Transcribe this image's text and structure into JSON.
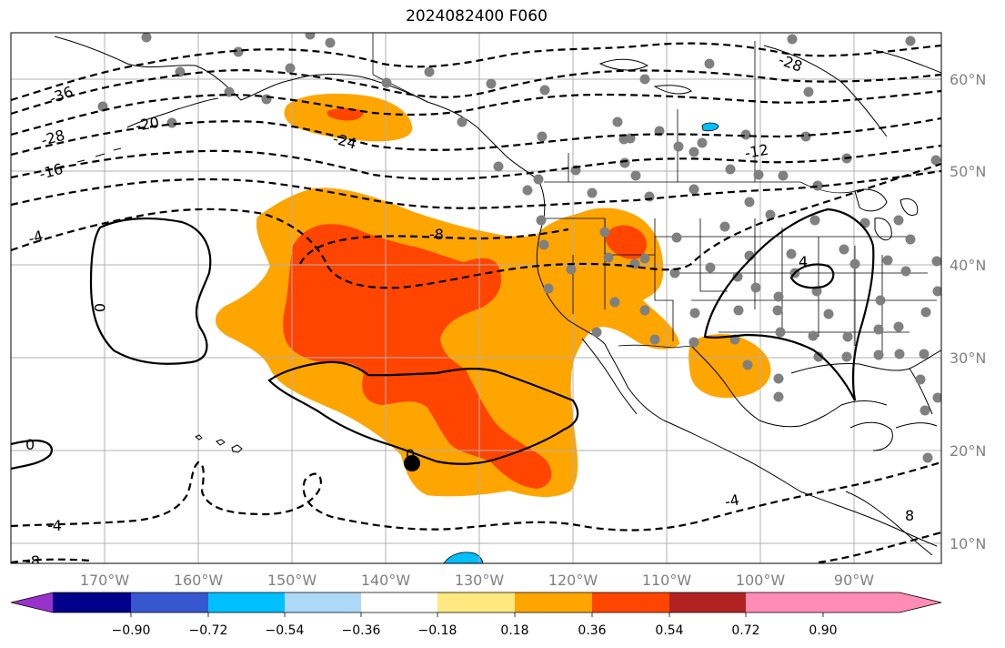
{
  "title": "2024082400 F060",
  "longitude_ticks": [
    "170°W",
    "160°W",
    "150°W",
    "140°W",
    "130°W",
    "120°W",
    "110°W",
    "100°W",
    "90°W"
  ],
  "latitude_ticks": [
    "60°N",
    "50°N",
    "40°N",
    "30°N",
    "20°N",
    "10°N"
  ],
  "contour_labels": [
    "-36",
    "-28",
    "-20",
    "-16",
    "-24",
    "-12",
    "-8",
    "-4",
    "0",
    "0",
    "0",
    "4",
    "-4",
    "-4",
    "-8",
    "-28",
    "8"
  ],
  "colorbar": {
    "colors": [
      "#9932cc",
      "#00008b",
      "#3657cf",
      "#00bfff",
      "#add8f7",
      "#ffffff",
      "#ffe880",
      "#ffa500",
      "#ff4500",
      "#b22222",
      "#ff8cb4"
    ],
    "tick_labels": [
      "−0.90",
      "−0.72",
      "−0.54",
      "−0.36",
      "−0.18",
      "0.18",
      "0.36",
      "0.54",
      "0.72",
      "0.90"
    ]
  },
  "legend_colors": {
    "positive_low": "#ffa500",
    "positive_mid": "#ff4500",
    "negative": "#00bfff",
    "station_dot": "#808080",
    "grid": "#b0b0b0"
  }
}
